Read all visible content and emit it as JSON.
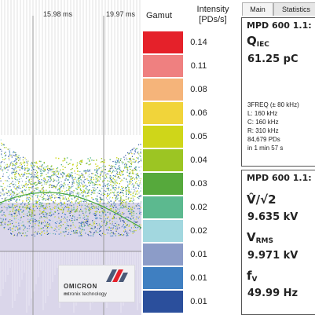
{
  "plot": {
    "time_labels": [
      "15.98 ms",
      "19.97 ms"
    ],
    "logo": {
      "brand": "OMICRON",
      "sub_prefix": "m",
      "sub_rest": "tronix technology"
    }
  },
  "legend": {
    "gamut_title": "Gamut",
    "intensity_title_line1": "Intensity",
    "intensity_title_line2": "[PDs/s]",
    "entries": [
      {
        "color": "#e5212a",
        "value": "0.14"
      },
      {
        "color": "#ef8080",
        "value": "0.11"
      },
      {
        "color": "#f5b47a",
        "value": "0.08"
      },
      {
        "color": "#f1d43a",
        "value": "0.06"
      },
      {
        "color": "#cfd619",
        "value": "0.05"
      },
      {
        "color": "#9cc523",
        "value": "0.04"
      },
      {
        "color": "#56a93c",
        "value": "0.03"
      },
      {
        "color": "#5cb98f",
        "value": "0.02"
      },
      {
        "color": "#a2d7df",
        "value": "0.02"
      },
      {
        "color": "#8c9cc8",
        "value": "0.01"
      },
      {
        "color": "#3f7fc1",
        "value": "0.01"
      },
      {
        "color": "#2b4f9c",
        "value": "0.01"
      }
    ]
  },
  "tabs": [
    {
      "label": "Main",
      "active": true
    },
    {
      "label": "Statistics",
      "active": false
    }
  ],
  "card1": {
    "title": "MPD 600 1.1:",
    "q_main": "Q",
    "q_sub": "IEC",
    "q_value": "61.25 pC",
    "lines": [
      "3FREQ (± 80 kHz)",
      "L: 160 kHz",
      "C: 160 kHz",
      "R: 310 kHz",
      "84,679 PDs",
      "in  1 min 57 s"
    ]
  },
  "card2": {
    "title": "MPD 600 1.1:",
    "v_label": "V̂/√2",
    "v_value": "9.635 kV",
    "vrms_main": "V",
    "vrms_sub": "RMS",
    "vrms_value": "9.971 kV",
    "f_main": "f",
    "f_sub": "V",
    "f_value": "49.99 Hz"
  }
}
